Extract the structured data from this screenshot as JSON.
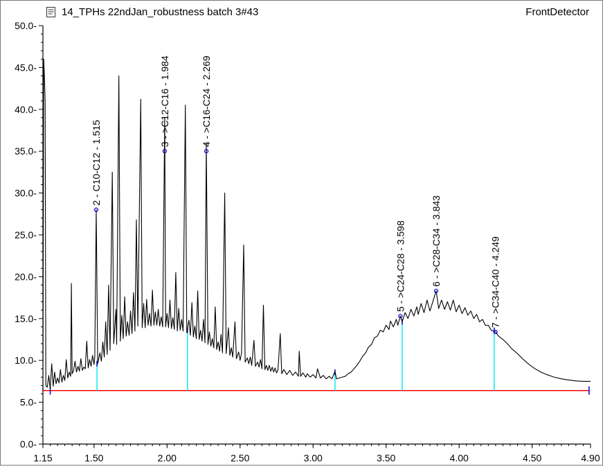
{
  "header": {
    "title": "14_TPHs 22ndJan_robustness batch 3#43",
    "detector": "FrontDetector",
    "icon": "document-icon"
  },
  "chart_data": {
    "type": "line",
    "title": "14_TPHs 22ndJan_robustness batch 3#43",
    "subtitle": "FrontDetector",
    "xlabel": "",
    "ylabel": "",
    "xlim": [
      1.15,
      4.9
    ],
    "ylim": [
      0.0,
      50.0
    ],
    "grid": false,
    "legend": "none",
    "x_ticks": [
      "1.15",
      "1.50",
      "2.00",
      "2.50",
      "3.00",
      "3.50",
      "4.00",
      "4.50",
      "4.90"
    ],
    "y_ticks": [
      "0.0",
      "5.0",
      "10.0",
      "15.0",
      "20.0",
      "25.0",
      "30.0",
      "35.0",
      "40.0",
      "45.0",
      "50.0"
    ],
    "colors": {
      "trace": "#000000",
      "baseline": "#ff0000",
      "window_line": "#00e5ee",
      "marker": "#0000cc"
    },
    "baseline": {
      "y": 6.4,
      "x_start": 1.15,
      "x_end": 4.89
    },
    "series": [
      {
        "values": [
          [
            1.15,
            6.4
          ],
          [
            1.155,
            46.0
          ],
          [
            1.16,
            44.0
          ],
          [
            1.165,
            41.0
          ],
          [
            1.17,
            7.0
          ],
          [
            1.18,
            6.8
          ],
          [
            1.19,
            8.2
          ],
          [
            1.2,
            6.6
          ],
          [
            1.21,
            9.6
          ],
          [
            1.22,
            6.9
          ],
          [
            1.23,
            8.6
          ],
          [
            1.24,
            7.2
          ],
          [
            1.25,
            7.9
          ],
          [
            1.26,
            7.3
          ],
          [
            1.27,
            8.9
          ],
          [
            1.28,
            7.4
          ],
          [
            1.29,
            8.2
          ],
          [
            1.3,
            7.6
          ],
          [
            1.31,
            10.1
          ],
          [
            1.32,
            7.9
          ],
          [
            1.33,
            8.6
          ],
          [
            1.34,
            8.1
          ],
          [
            1.345,
            19.2
          ],
          [
            1.35,
            8.4
          ],
          [
            1.36,
            8.8
          ],
          [
            1.37,
            9.9
          ],
          [
            1.38,
            8.6
          ],
          [
            1.39,
            9.3
          ],
          [
            1.4,
            8.7
          ],
          [
            1.41,
            10.2
          ],
          [
            1.42,
            8.8
          ],
          [
            1.43,
            9.2
          ],
          [
            1.44,
            9.0
          ],
          [
            1.45,
            12.3
          ],
          [
            1.46,
            9.1
          ],
          [
            1.47,
            10.1
          ],
          [
            1.48,
            9.3
          ],
          [
            1.49,
            10.6
          ],
          [
            1.5,
            9.5
          ],
          [
            1.505,
            10.4
          ],
          [
            1.515,
            28.0
          ],
          [
            1.525,
            9.6
          ],
          [
            1.54,
            10.9
          ],
          [
            1.55,
            9.9
          ],
          [
            1.56,
            12.2
          ],
          [
            1.57,
            10.4
          ],
          [
            1.58,
            14.6
          ],
          [
            1.59,
            10.7
          ],
          [
            1.6,
            19.0
          ],
          [
            1.61,
            11.2
          ],
          [
            1.625,
            32.5
          ],
          [
            1.635,
            12.0
          ],
          [
            1.65,
            16.1
          ],
          [
            1.655,
            11.9
          ],
          [
            1.67,
            44.0
          ],
          [
            1.68,
            12.3
          ],
          [
            1.69,
            15.4
          ],
          [
            1.7,
            12.6
          ],
          [
            1.71,
            17.6
          ],
          [
            1.72,
            12.9
          ],
          [
            1.73,
            14.6
          ],
          [
            1.74,
            13.0
          ],
          [
            1.75,
            15.9
          ],
          [
            1.76,
            13.2
          ],
          [
            1.77,
            18.1
          ],
          [
            1.78,
            13.5
          ],
          [
            1.79,
            26.8
          ],
          [
            1.8,
            14.1
          ],
          [
            1.81,
            27.2
          ],
          [
            1.82,
            41.2
          ],
          [
            1.83,
            13.9
          ],
          [
            1.84,
            16.8
          ],
          [
            1.85,
            13.9
          ],
          [
            1.86,
            17.3
          ],
          [
            1.87,
            14.2
          ],
          [
            1.88,
            15.6
          ],
          [
            1.89,
            14.1
          ],
          [
            1.9,
            18.4
          ],
          [
            1.91,
            14.2
          ],
          [
            1.92,
            15.8
          ],
          [
            1.93,
            14.2
          ],
          [
            1.94,
            16.1
          ],
          [
            1.95,
            14.1
          ],
          [
            1.96,
            15.2
          ],
          [
            1.97,
            14.0
          ],
          [
            1.984,
            39.0
          ],
          [
            1.99,
            14.0
          ],
          [
            2.0,
            15.6
          ],
          [
            2.01,
            13.9
          ],
          [
            2.02,
            17.2
          ],
          [
            2.03,
            13.8
          ],
          [
            2.04,
            15.1
          ],
          [
            2.05,
            13.7
          ],
          [
            2.06,
            20.5
          ],
          [
            2.07,
            13.5
          ],
          [
            2.08,
            16.2
          ],
          [
            2.09,
            13.6
          ],
          [
            2.1,
            14.9
          ],
          [
            2.11,
            13.5
          ],
          [
            2.125,
            40.5
          ],
          [
            2.135,
            13.3
          ],
          [
            2.15,
            14.8
          ],
          [
            2.16,
            13.0
          ],
          [
            2.17,
            16.9
          ],
          [
            2.18,
            12.8
          ],
          [
            2.19,
            14.1
          ],
          [
            2.2,
            12.6
          ],
          [
            2.21,
            18.3
          ],
          [
            2.22,
            12.5
          ],
          [
            2.23,
            13.6
          ],
          [
            2.24,
            12.3
          ],
          [
            2.25,
            14.9
          ],
          [
            2.26,
            12.1
          ],
          [
            2.269,
            36.0
          ],
          [
            2.28,
            11.9
          ],
          [
            2.29,
            13.4
          ],
          [
            2.3,
            11.7
          ],
          [
            2.31,
            12.6
          ],
          [
            2.32,
            11.5
          ],
          [
            2.33,
            16.4
          ],
          [
            2.34,
            11.3
          ],
          [
            2.35,
            12.2
          ],
          [
            2.36,
            11.1
          ],
          [
            2.37,
            13.1
          ],
          [
            2.38,
            10.9
          ],
          [
            2.395,
            30.0
          ],
          [
            2.405,
            10.8
          ],
          [
            2.42,
            13.9
          ],
          [
            2.43,
            10.6
          ],
          [
            2.44,
            11.5
          ],
          [
            2.45,
            10.4
          ],
          [
            2.465,
            14.6
          ],
          [
            2.475,
            10.2
          ],
          [
            2.49,
            11.0
          ],
          [
            2.5,
            10.0
          ],
          [
            2.51,
            10.9
          ],
          [
            2.525,
            23.8
          ],
          [
            2.535,
            9.8
          ],
          [
            2.55,
            10.3
          ],
          [
            2.56,
            9.6
          ],
          [
            2.57,
            10.4
          ],
          [
            2.58,
            9.4
          ],
          [
            2.595,
            12.4
          ],
          [
            2.605,
            9.3
          ],
          [
            2.62,
            9.8
          ],
          [
            2.63,
            9.2
          ],
          [
            2.64,
            10.1
          ],
          [
            2.65,
            9.0
          ],
          [
            2.66,
            16.6
          ],
          [
            2.67,
            8.9
          ],
          [
            2.68,
            9.4
          ],
          [
            2.69,
            8.8
          ],
          [
            2.7,
            9.4
          ],
          [
            2.71,
            8.7
          ],
          [
            2.72,
            9.2
          ],
          [
            2.73,
            8.6
          ],
          [
            2.74,
            9.1
          ],
          [
            2.75,
            8.5
          ],
          [
            2.76,
            8.9
          ],
          [
            2.775,
            13.2
          ],
          [
            2.785,
            8.4
          ],
          [
            2.8,
            8.9
          ],
          [
            2.82,
            8.3
          ],
          [
            2.84,
            8.8
          ],
          [
            2.86,
            8.2
          ],
          [
            2.88,
            8.6
          ],
          [
            2.9,
            8.1
          ],
          [
            2.905,
            11.1
          ],
          [
            2.915,
            8.1
          ],
          [
            2.93,
            8.5
          ],
          [
            2.95,
            8.0
          ],
          [
            2.96,
            8.4
          ],
          [
            2.98,
            8.0
          ],
          [
            3.0,
            8.3
          ],
          [
            3.02,
            7.9
          ],
          [
            3.03,
            9.0
          ],
          [
            3.05,
            7.9
          ],
          [
            3.07,
            8.2
          ],
          [
            3.09,
            7.8
          ],
          [
            3.11,
            8.1
          ],
          [
            3.13,
            7.8
          ],
          [
            3.15,
            8.7
          ],
          [
            3.16,
            7.8
          ],
          [
            3.18,
            7.9
          ],
          [
            3.2,
            8.0
          ],
          [
            3.22,
            8.1
          ],
          [
            3.24,
            8.4
          ],
          [
            3.26,
            8.6
          ],
          [
            3.28,
            9.0
          ],
          [
            3.3,
            9.4
          ],
          [
            3.32,
            9.9
          ],
          [
            3.34,
            10.5
          ],
          [
            3.36,
            10.9
          ],
          [
            3.38,
            11.6
          ],
          [
            3.4,
            11.9
          ],
          [
            3.42,
            12.7
          ],
          [
            3.44,
            12.9
          ],
          [
            3.46,
            13.6
          ],
          [
            3.48,
            13.4
          ],
          [
            3.5,
            14.2
          ],
          [
            3.52,
            13.7
          ],
          [
            3.53,
            14.7
          ],
          [
            3.55,
            14.0
          ],
          [
            3.57,
            14.9
          ],
          [
            3.58,
            14.2
          ],
          [
            3.598,
            15.3
          ],
          [
            3.61,
            14.6
          ],
          [
            3.63,
            15.7
          ],
          [
            3.65,
            15.0
          ],
          [
            3.67,
            16.1
          ],
          [
            3.69,
            15.3
          ],
          [
            3.71,
            16.4
          ],
          [
            3.72,
            15.5
          ],
          [
            3.74,
            16.8
          ],
          [
            3.76,
            15.7
          ],
          [
            3.78,
            17.2
          ],
          [
            3.8,
            15.9
          ],
          [
            3.82,
            17.0
          ],
          [
            3.843,
            18.3
          ],
          [
            3.86,
            16.2
          ],
          [
            3.88,
            17.2
          ],
          [
            3.9,
            16.1
          ],
          [
            3.92,
            17.0
          ],
          [
            3.94,
            16.0
          ],
          [
            3.96,
            17.2
          ],
          [
            3.98,
            15.8
          ],
          [
            4.0,
            16.6
          ],
          [
            4.02,
            15.6
          ],
          [
            4.04,
            16.3
          ],
          [
            4.06,
            15.4
          ],
          [
            4.08,
            15.9
          ],
          [
            4.1,
            15.0
          ],
          [
            4.12,
            15.5
          ],
          [
            4.14,
            14.6
          ],
          [
            4.16,
            14.9
          ],
          [
            4.18,
            14.2
          ],
          [
            4.2,
            14.2
          ],
          [
            4.22,
            13.6
          ],
          [
            4.249,
            13.4
          ],
          [
            4.27,
            12.9
          ],
          [
            4.3,
            12.5
          ],
          [
            4.33,
            12.0
          ],
          [
            4.36,
            11.4
          ],
          [
            4.4,
            10.8
          ],
          [
            4.44,
            10.1
          ],
          [
            4.48,
            9.5
          ],
          [
            4.52,
            9.0
          ],
          [
            4.56,
            8.6
          ],
          [
            4.6,
            8.3
          ],
          [
            4.65,
            8.0
          ],
          [
            4.7,
            7.8
          ],
          [
            4.75,
            7.65
          ],
          [
            4.8,
            7.55
          ],
          [
            4.85,
            7.5
          ],
          [
            4.9,
            7.5
          ]
        ]
      }
    ],
    "peak_labels": [
      {
        "x": 1.515,
        "y": 28.0,
        "text": "2 - C10-C12 - 1.515"
      },
      {
        "x": 1.984,
        "y": 35.0,
        "text": "3 - >C12-C16 - 1.984"
      },
      {
        "x": 2.269,
        "y": 35.0,
        "text": "4 - >C16-C24 - 2.269"
      },
      {
        "x": 3.598,
        "y": 15.3,
        "text": "5 - >C24-C28 - 3.598"
      },
      {
        "x": 3.843,
        "y": 18.3,
        "text": "6 - >C28-C34 - 3.843"
      },
      {
        "x": 4.249,
        "y": 13.4,
        "text": "7 - >C34-C40 - 4.249"
      }
    ],
    "window_lines": [
      {
        "x": 1.52,
        "y": 9.6
      },
      {
        "x": 2.14,
        "y": 13.6
      },
      {
        "x": 3.15,
        "y": 8.6
      },
      {
        "x": 3.61,
        "y": 14.6
      },
      {
        "x": 4.24,
        "y": 13.6
      }
    ],
    "baseline_markers": [
      1.2,
      4.89
    ]
  }
}
